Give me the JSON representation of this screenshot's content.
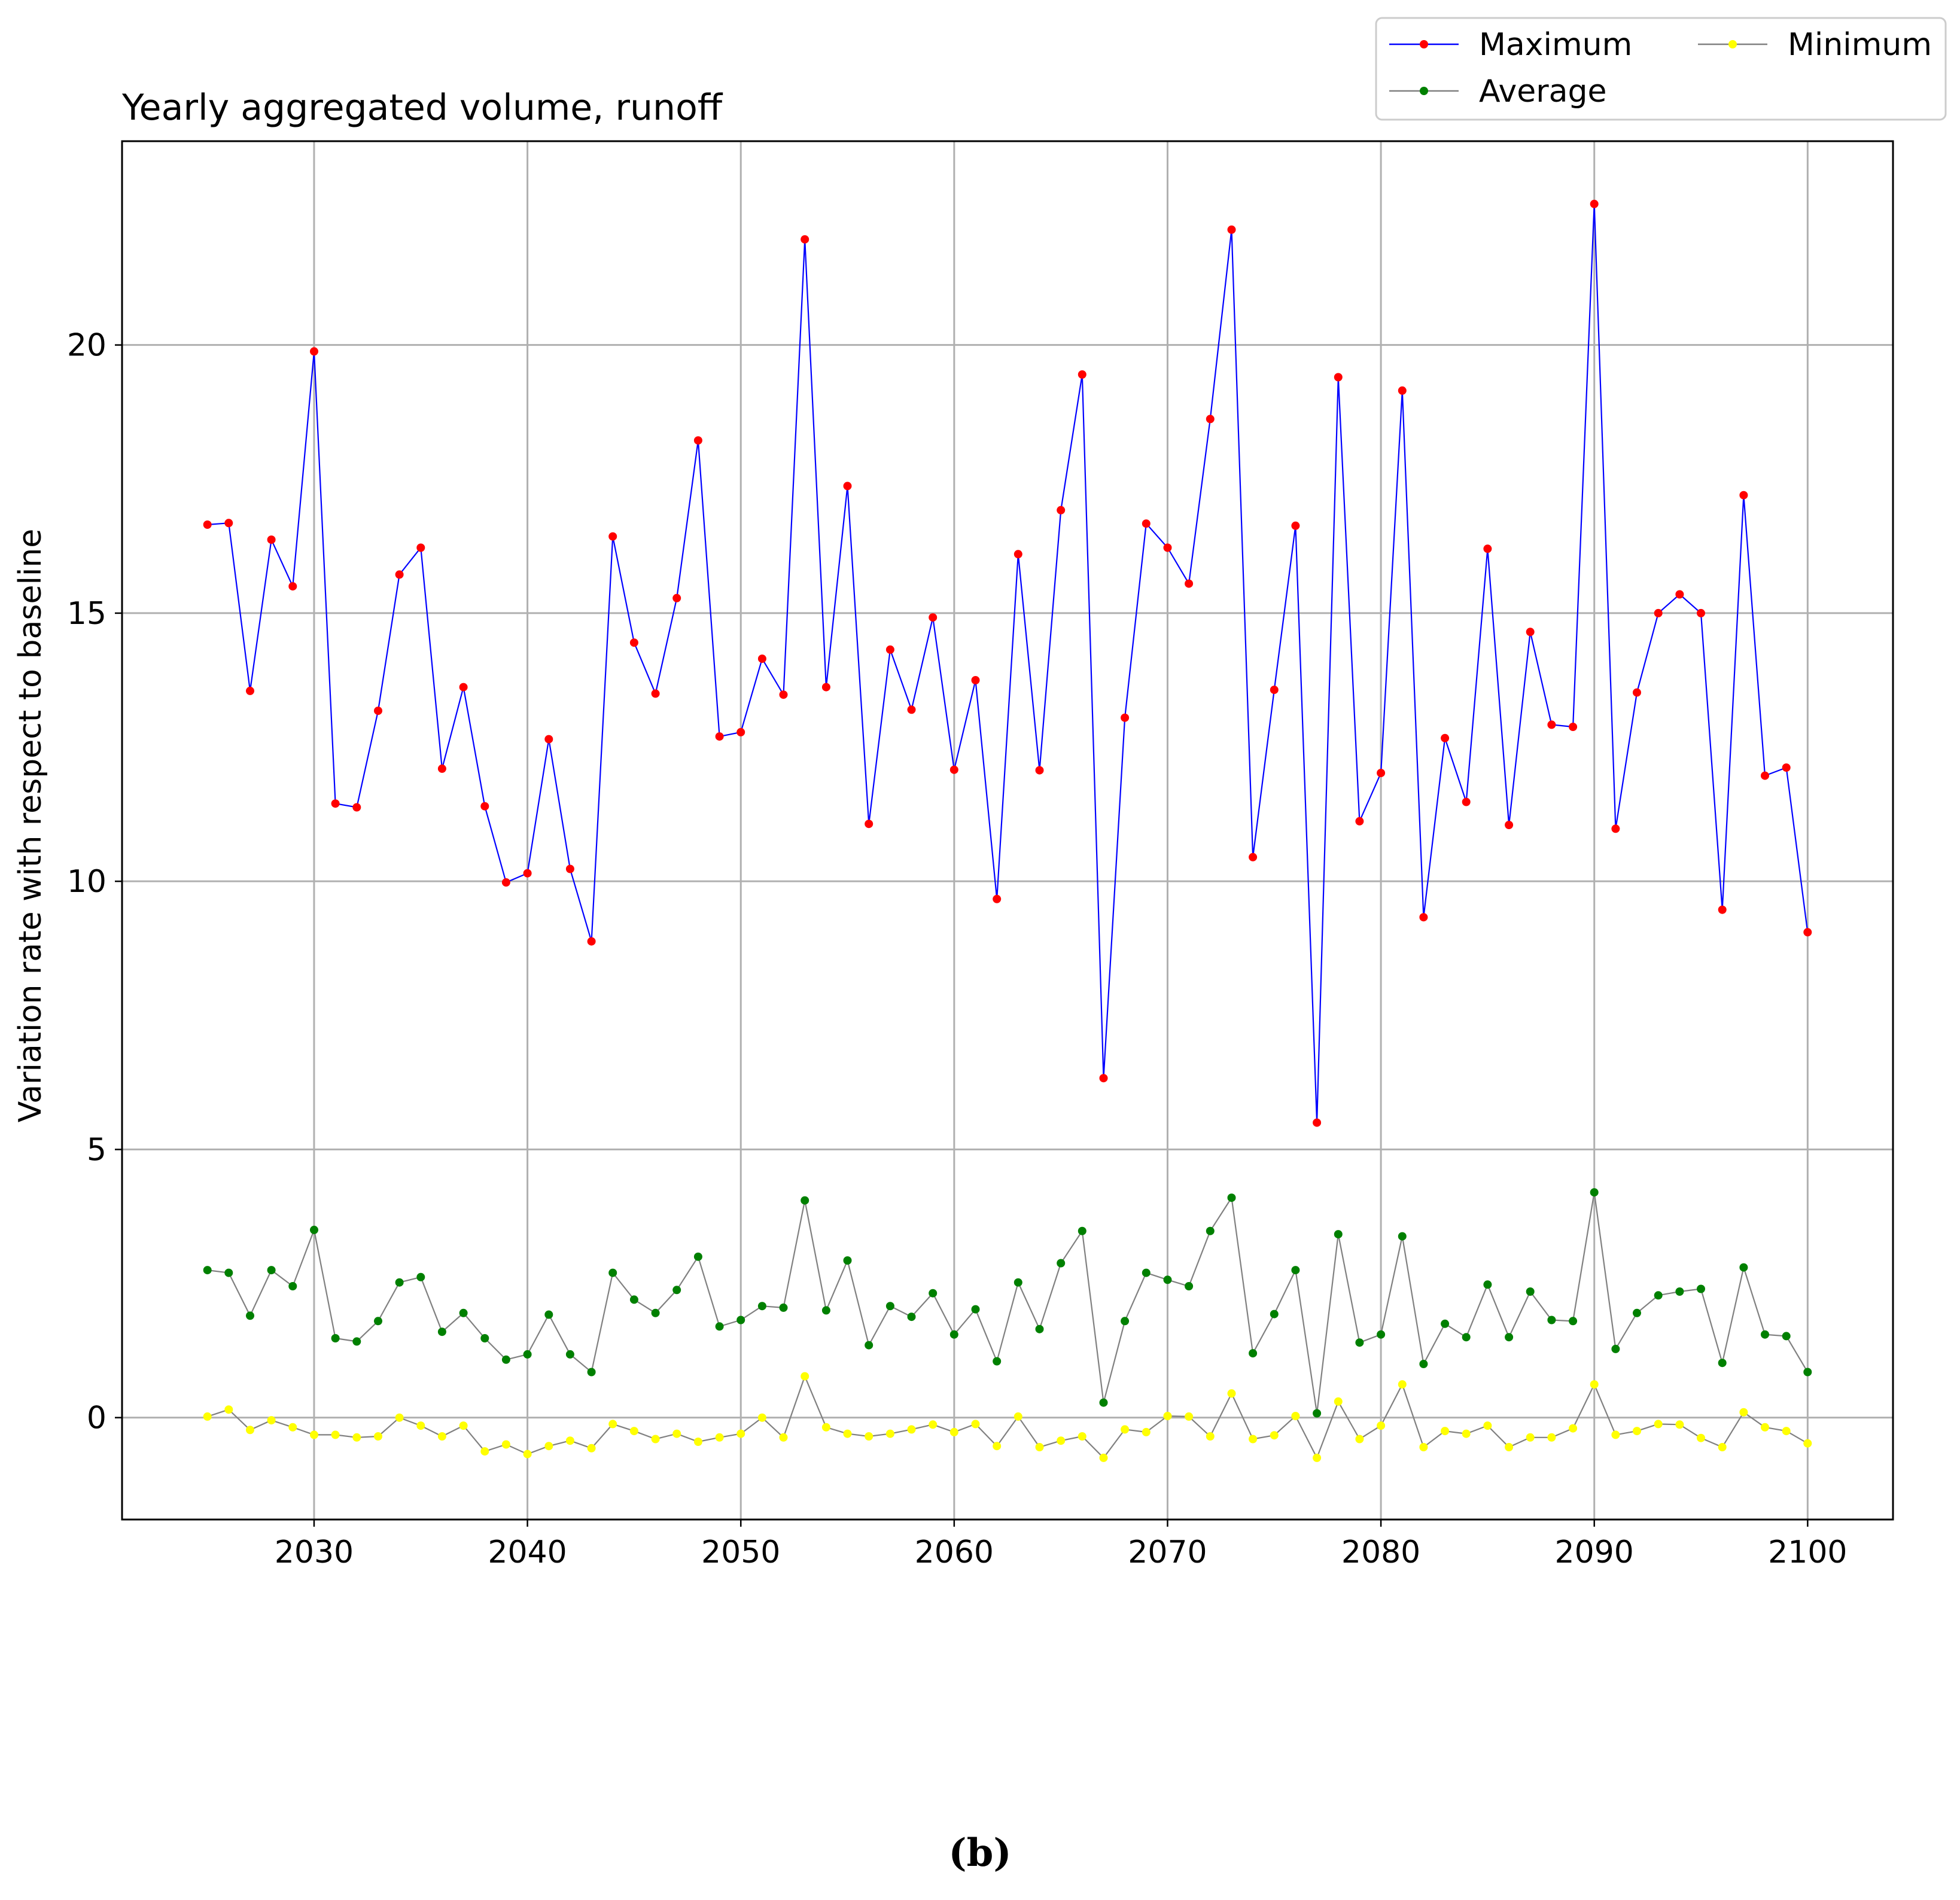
{
  "chart_data": {
    "type": "line",
    "title": "Yearly aggregated volume, runoff",
    "ylabel": "Variation rate with respect to baseline",
    "xlabel": "",
    "xlim": [
      2021,
      2104
    ],
    "ylim": [
      -1.9,
      23.8
    ],
    "xticks": [
      2030,
      2040,
      2050,
      2060,
      2070,
      2080,
      2090,
      2100
    ],
    "yticks": [
      0,
      5,
      10,
      15,
      20
    ],
    "grid": true,
    "legend_placement": "top-right, above plot",
    "x": [
      2025,
      2026,
      2027,
      2028,
      2029,
      2030,
      2031,
      2032,
      2033,
      2034,
      2035,
      2036,
      2037,
      2038,
      2039,
      2040,
      2041,
      2042,
      2043,
      2044,
      2045,
      2046,
      2047,
      2048,
      2049,
      2050,
      2051,
      2052,
      2053,
      2054,
      2055,
      2056,
      2057,
      2058,
      2059,
      2060,
      2061,
      2062,
      2063,
      2064,
      2065,
      2066,
      2067,
      2068,
      2069,
      2070,
      2071,
      2072,
      2073,
      2074,
      2075,
      2076,
      2077,
      2078,
      2079,
      2080,
      2081,
      2082,
      2083,
      2084,
      2085,
      2086,
      2087,
      2088,
      2089,
      2090,
      2091,
      2092,
      2093,
      2094,
      2095,
      2096,
      2097,
      2098,
      2099,
      2100
    ],
    "series": [
      {
        "name": "Maximum",
        "line_color": "#0000ff",
        "marker_color": "#ff0000",
        "values": [
          16.65,
          16.68,
          13.55,
          16.37,
          15.5,
          19.88,
          11.45,
          11.38,
          13.18,
          15.72,
          16.22,
          12.1,
          13.62,
          11.4,
          9.98,
          10.15,
          12.65,
          10.23,
          8.88,
          16.43,
          14.45,
          13.5,
          15.28,
          18.22,
          12.7,
          12.78,
          14.15,
          13.48,
          21.97,
          13.62,
          17.37,
          11.07,
          14.32,
          13.2,
          14.92,
          12.08,
          13.75,
          9.67,
          16.1,
          12.07,
          16.92,
          19.45,
          6.33,
          13.05,
          16.67,
          16.22,
          15.55,
          18.62,
          22.15,
          10.45,
          13.57,
          16.63,
          5.5,
          19.4,
          11.12,
          12.02,
          19.15,
          9.33,
          12.67,
          11.48,
          16.2,
          11.05,
          14.65,
          12.92,
          12.88,
          22.63,
          10.98,
          13.52,
          15.0,
          15.35,
          15.0,
          9.47,
          17.2,
          11.97,
          12.12,
          9.05
        ]
      },
      {
        "name": "Average",
        "line_color": "#808080",
        "marker_color": "#008000",
        "values": [
          2.75,
          2.7,
          1.9,
          2.75,
          2.45,
          3.5,
          1.48,
          1.42,
          1.8,
          2.52,
          2.62,
          1.6,
          1.95,
          1.48,
          1.08,
          1.18,
          1.92,
          1.18,
          0.85,
          2.7,
          2.2,
          1.95,
          2.38,
          3.0,
          1.7,
          1.82,
          2.08,
          2.05,
          4.05,
          2.0,
          2.93,
          1.35,
          2.08,
          1.88,
          2.32,
          1.55,
          2.02,
          1.05,
          2.52,
          1.65,
          2.88,
          3.48,
          0.28,
          1.8,
          2.7,
          2.57,
          2.45,
          3.48,
          4.1,
          1.2,
          1.93,
          2.75,
          0.08,
          3.42,
          1.4,
          1.55,
          3.38,
          1.0,
          1.75,
          1.5,
          2.48,
          1.5,
          2.35,
          1.82,
          1.8,
          4.2,
          1.28,
          1.95,
          2.28,
          2.35,
          2.4,
          1.02,
          2.8,
          1.55,
          1.52,
          0.85
        ]
      },
      {
        "name": "Minimum",
        "line_color": "#808080",
        "marker_color": "#ffff00",
        "values": [
          0.02,
          0.15,
          -0.23,
          -0.05,
          -0.18,
          -0.32,
          -0.32,
          -0.37,
          -0.35,
          0.0,
          -0.15,
          -0.35,
          -0.15,
          -0.63,
          -0.5,
          -0.68,
          -0.53,
          -0.43,
          -0.57,
          -0.12,
          -0.25,
          -0.4,
          -0.3,
          -0.45,
          -0.37,
          -0.3,
          0.0,
          -0.37,
          0.77,
          -0.18,
          -0.3,
          -0.35,
          -0.3,
          -0.22,
          -0.13,
          -0.27,
          -0.12,
          -0.53,
          0.02,
          -0.55,
          -0.43,
          -0.35,
          -0.75,
          -0.22,
          -0.27,
          0.03,
          0.02,
          -0.35,
          0.45,
          -0.4,
          -0.33,
          0.03,
          -0.75,
          0.3,
          -0.4,
          -0.15,
          0.62,
          -0.55,
          -0.25,
          -0.3,
          -0.15,
          -0.55,
          -0.37,
          -0.37,
          -0.2,
          0.62,
          -0.32,
          -0.25,
          -0.12,
          -0.13,
          -0.38,
          -0.55,
          0.1,
          -0.18,
          -0.25,
          -0.48
        ]
      }
    ],
    "legend": {
      "entries": [
        "Maximum",
        "Minimum",
        "Average"
      ]
    }
  },
  "caption": "(b)"
}
